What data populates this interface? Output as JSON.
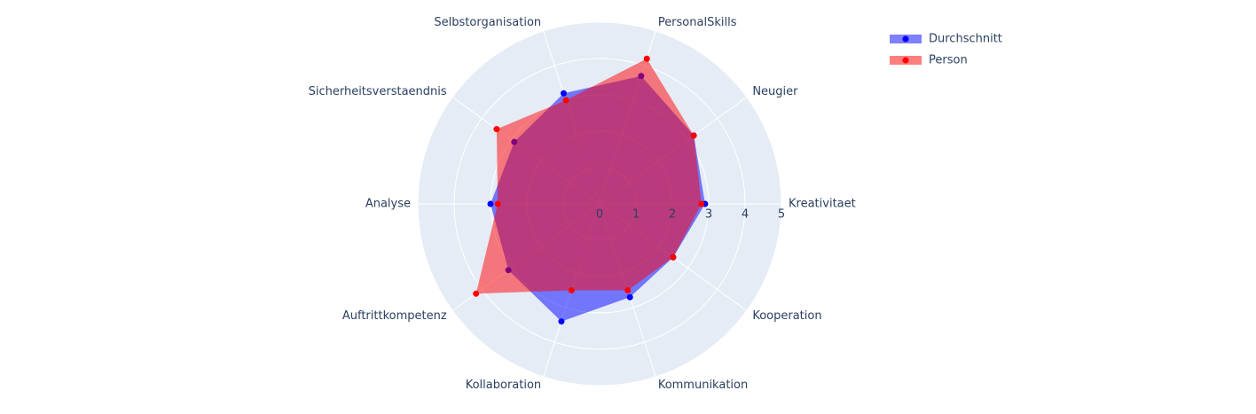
{
  "chart_data": {
    "type": "radar",
    "categories": [
      "Kreativitaet",
      "Neugier",
      "PersonalSkills",
      "Selbstorganisation",
      "Sicherheitsverstaendnis",
      "Analyse",
      "Auftrittkompetenz",
      "Kollaboration",
      "Kommunikation",
      "Kooperation"
    ],
    "series": [
      {
        "name": "Durchschnitt",
        "color": "#0000ff",
        "values": [
          2.9,
          3.2,
          3.7,
          3.2,
          2.9,
          3.0,
          3.1,
          3.4,
          2.7,
          2.5
        ]
      },
      {
        "name": "Person",
        "color": "#ff0000",
        "values": [
          2.8,
          3.2,
          4.2,
          3.0,
          3.5,
          2.8,
          4.2,
          2.5,
          2.5,
          2.5
        ]
      }
    ],
    "rlim": [
      0,
      5
    ],
    "rticks": [
      0,
      1,
      2,
      3,
      4,
      5
    ],
    "grid": true,
    "legend": "top-right"
  }
}
